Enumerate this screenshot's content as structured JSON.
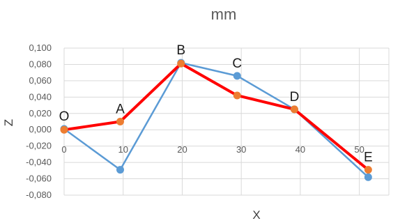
{
  "chart_data": {
    "type": "scatter",
    "title": "mm",
    "xlabel": "X",
    "ylabel": "Z",
    "xlim": [
      0,
      55
    ],
    "ylim": [
      -0.08,
      0.1
    ],
    "x_ticks": [
      0,
      10,
      20,
      30,
      40,
      50
    ],
    "x_tick_labels": [
      "0",
      "10",
      "20",
      "30",
      "40",
      "50"
    ],
    "y_ticks": [
      0.1,
      0.08,
      0.06,
      0.04,
      0.02,
      0.0,
      -0.02,
      -0.04,
      -0.06,
      -0.08
    ],
    "y_tick_labels": [
      "0,100",
      "0,080",
      "0,060",
      "0,040",
      "0,020",
      "0,000",
      "-0,020",
      "-0,040",
      "-0,060",
      "-0,080"
    ],
    "grid": true,
    "legend": "none",
    "series": [
      {
        "color": "#5B9BD5",
        "marker_color": "#5B9BD5",
        "line_width": 2.5,
        "x": [
          0,
          9.5,
          19.8,
          29.3,
          39,
          51.5
        ],
        "y": [
          0.001,
          -0.049,
          0.082,
          0.066,
          0.025,
          -0.058
        ]
      },
      {
        "color": "#FF0000",
        "marker_color": "#ED7D31",
        "line_width": 4,
        "x": [
          0,
          9.5,
          19.8,
          29.3,
          39,
          51.5
        ],
        "y": [
          0.0,
          0.01,
          0.081,
          0.042,
          0.025,
          -0.049
        ]
      }
    ],
    "point_labels": [
      {
        "text": "O",
        "x": 0,
        "y": 0.001
      },
      {
        "text": "A",
        "x": 9.5,
        "y": 0.01
      },
      {
        "text": "B",
        "x": 19.8,
        "y": 0.082
      },
      {
        "text": "C",
        "x": 29.3,
        "y": 0.066
      },
      {
        "text": "D",
        "x": 39,
        "y": 0.025
      },
      {
        "text": "E",
        "x": 51.5,
        "y": -0.049
      }
    ],
    "colors": {
      "grid": "#D9D9D9",
      "axis_text": "#595959"
    }
  }
}
